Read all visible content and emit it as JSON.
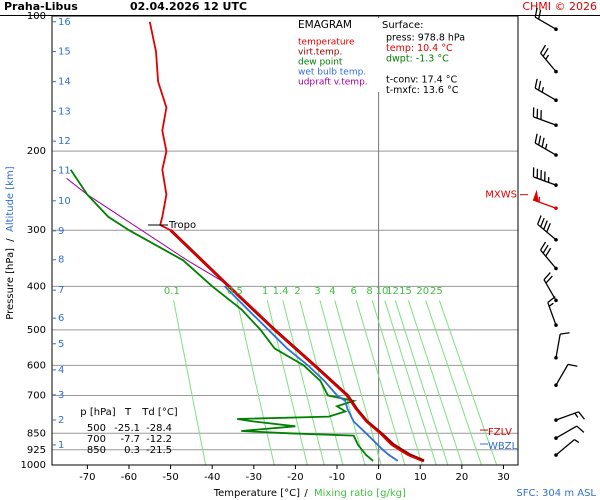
{
  "chart_data": {
    "type": "emagram",
    "station": "Praha-Libus",
    "time": "02.04.2026 12 UTC",
    "credit": "CHMI © 2026",
    "legend_title": "EMAGRAM",
    "xlabel": "Temperature [°C]",
    "xlabel_sep": "/",
    "xlabel2": "Mixing ratio [g/kg]",
    "ylabel": "Pressure [hPa]",
    "ylabel_sep": "/",
    "ylabel2": "Altitude [km]",
    "xlim": [
      -78.5,
      33.5
    ],
    "xticks": [
      -70,
      -60,
      -50,
      -40,
      -30,
      -20,
      -10,
      0,
      10,
      20,
      30
    ],
    "ylim": [
      100,
      1000
    ],
    "log_y": true,
    "yticks": [
      100,
      200,
      300,
      400,
      500,
      600,
      700,
      850,
      925,
      1000
    ],
    "altitude_ticks": [
      {
        "value": 902,
        "label": "1"
      },
      {
        "value": 794,
        "label": "2"
      },
      {
        "value": 698,
        "label": "3"
      },
      {
        "value": 614,
        "label": "4"
      },
      {
        "value": 537,
        "label": "5"
      },
      {
        "value": 471,
        "label": "6"
      },
      {
        "value": 408,
        "label": "7"
      },
      {
        "value": 349,
        "label": "8"
      },
      {
        "value": 301,
        "label": "9"
      },
      {
        "value": 258,
        "label": "10"
      },
      {
        "value": 221,
        "label": "11"
      },
      {
        "value": 190,
        "label": "12"
      },
      {
        "value": 163,
        "label": "13"
      },
      {
        "value": 140,
        "label": "14"
      },
      {
        "value": 120,
        "label": "15"
      },
      {
        "value": 103,
        "label": "16"
      }
    ],
    "mixing_ratio_lines": [
      0.1,
      0.5,
      1,
      1.4,
      2,
      3,
      4,
      6,
      8,
      10,
      12,
      15,
      20,
      25
    ],
    "series": [
      {
        "name": "temperature",
        "color": "#e00000",
        "y": [
          979,
          950,
          925,
          900,
          850,
          800,
          750,
          700,
          650,
          600,
          550,
          500,
          450,
          400,
          350,
          300,
          292,
          280,
          250,
          220,
          200,
          180,
          160,
          140,
          120,
          103
        ],
        "x": [
          10.4,
          7,
          5,
          3,
          0.3,
          -3,
          -5.5,
          -7.7,
          -11.5,
          -15.5,
          -20,
          -25.1,
          -30,
          -36,
          -42.5,
          -50,
          -52.5,
          -52,
          -51,
          -52,
          -51,
          -52,
          -51,
          -53,
          -53.5,
          -55
        ]
      },
      {
        "name": "virt.temp.",
        "color": "#900000",
        "y": [
          979,
          950,
          925,
          900,
          850,
          800,
          750,
          700,
          600,
          500,
          400,
          300
        ],
        "x": [
          10.9,
          7.6,
          5.5,
          3.5,
          0.6,
          -2.8,
          -5.3,
          -7.5,
          -15.4,
          -25,
          -36,
          -50
        ]
      },
      {
        "name": "dew point",
        "color": "#008000",
        "y": [
          979,
          950,
          925,
          900,
          860,
          850,
          840,
          820,
          800,
          790,
          780,
          760,
          740,
          720,
          700,
          650,
          600,
          550,
          500,
          450,
          400,
          350,
          300,
          280,
          250,
          220
        ],
        "x": [
          -1.3,
          -3,
          -4,
          -5,
          -6,
          -21.5,
          -33,
          -20,
          -30,
          -34,
          -12,
          -8,
          -10,
          -6,
          -12.2,
          -14,
          -18,
          -25,
          -28.4,
          -33,
          -40,
          -47,
          -60,
          -65,
          -70,
          -74
        ]
      },
      {
        "name": "wet bulb temp.",
        "color": "#3070d0",
        "y": [
          979,
          950,
          925,
          900,
          850,
          800,
          750,
          720,
          700,
          650,
          600,
          550,
          500,
          450,
          400
        ],
        "x": [
          4.6,
          2.5,
          1,
          -0.3,
          -3,
          -6,
          -7.5,
          -8,
          -10,
          -13,
          -17,
          -22,
          -26.5,
          -31.5,
          -37
        ]
      },
      {
        "name": "udpraft v.temp.",
        "color": "#a000a0",
        "y": [
          400,
          350,
          300,
          250,
          230
        ],
        "x": [
          -35.5,
          -46,
          -57,
          -70,
          -75
        ]
      }
    ],
    "tropopause": {
      "label": "Tropo",
      "pressure": 292
    },
    "levels": [
      {
        "label": "FZLV",
        "pressure": 836,
        "color": "#e00000"
      },
      {
        "label": "WBZL",
        "pressure": 898,
        "color": "#3070d0"
      },
      {
        "label": "MXWS",
        "pressure": 250,
        "color": "#e00000"
      }
    ],
    "surface": {
      "title": "Surface:",
      "lines": [
        "press: 978.8 hPa",
        "temp: 10.4 °C",
        "dwpt: -1.3 °C",
        "",
        "t-conv: 17.4 °C",
        "t-mxfc: 13.6 °C"
      ]
    },
    "table": {
      "header": [
        "p [hPa]",
        "T",
        "Td [°C]"
      ],
      "rows": [
        [
          500,
          -25.1,
          -28.4
        ],
        [
          700,
          -7.7,
          -12.2
        ],
        [
          850,
          0.3,
          -21.5
        ]
      ]
    },
    "winds": [
      {
        "pressure": 107,
        "direction": 300,
        "speed": 20
      },
      {
        "pressure": 133,
        "direction": 320,
        "speed": 25
      },
      {
        "pressure": 154,
        "direction": 300,
        "speed": 25
      },
      {
        "pressure": 175,
        "direction": 290,
        "speed": 30
      },
      {
        "pressure": 204,
        "direction": 300,
        "speed": 35
      },
      {
        "pressure": 238,
        "direction": 290,
        "speed": 45
      },
      {
        "pressure": 268,
        "direction": 290,
        "speed": 55
      },
      {
        "pressure": 315,
        "direction": 310,
        "speed": 40
      },
      {
        "pressure": 365,
        "direction": 320,
        "speed": 30
      },
      {
        "pressure": 430,
        "direction": 330,
        "speed": 20
      },
      {
        "pressure": 488,
        "direction": 340,
        "speed": 15
      },
      {
        "pressure": 577,
        "direction": 10,
        "speed": 10
      },
      {
        "pressure": 664,
        "direction": 30,
        "speed": 10
      },
      {
        "pressure": 794,
        "direction": 70,
        "speed": 15
      },
      {
        "pressure": 871,
        "direction": 60,
        "speed": 10
      },
      {
        "pressure": 950,
        "direction": 50,
        "speed": 5
      }
    ],
    "sfc_height": "SFC: 304 m ASL"
  }
}
